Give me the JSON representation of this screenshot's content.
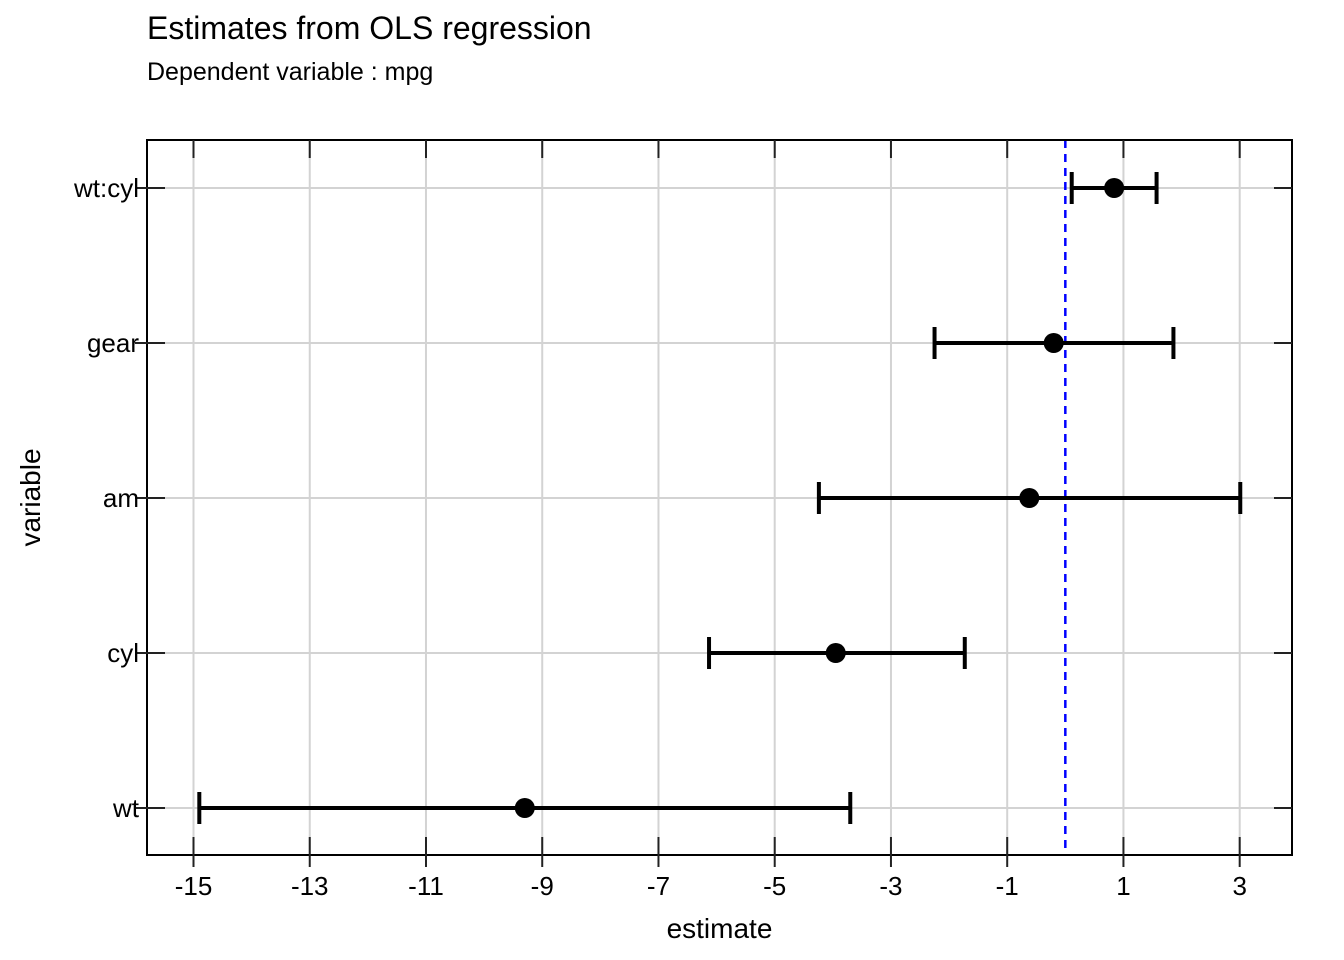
{
  "chart_data": {
    "type": "scatter",
    "title": "Estimates from OLS regression",
    "subtitle": "Dependent variable : mpg",
    "xlabel": "estimate",
    "ylabel": "variable",
    "xlim": [
      -15.8,
      3.9
    ],
    "x_ticks": [
      -15,
      -13,
      -11,
      -9,
      -7,
      -5,
      -3,
      -1,
      1,
      3
    ],
    "x_tick_labels": [
      "-15",
      "-13",
      "-11",
      "-9",
      "-7",
      "-5",
      "-3",
      "-1",
      "1",
      "3"
    ],
    "categories": [
      "wt:cyl",
      "gear",
      "am",
      "cyl",
      "wt"
    ],
    "points": [
      {
        "variable": "wt:cyl",
        "estimate": 0.84,
        "lower": 0.11,
        "upper": 1.57
      },
      {
        "variable": "gear",
        "estimate": -0.2,
        "lower": -2.25,
        "upper": 1.86
      },
      {
        "variable": "am",
        "estimate": -0.62,
        "lower": -4.24,
        "upper": 3.01
      },
      {
        "variable": "cyl",
        "estimate": -3.95,
        "lower": -6.13,
        "upper": -1.73
      },
      {
        "variable": "wt",
        "estimate": -9.3,
        "lower": -14.9,
        "upper": -3.7
      }
    ],
    "reference_line": {
      "x": 0,
      "style": "dashed",
      "color": "#0000ff"
    },
    "grid": true,
    "legend": "none",
    "colors": {
      "points": "#000000",
      "grid": "#d3d3d3",
      "reference": "#0000ff"
    }
  }
}
